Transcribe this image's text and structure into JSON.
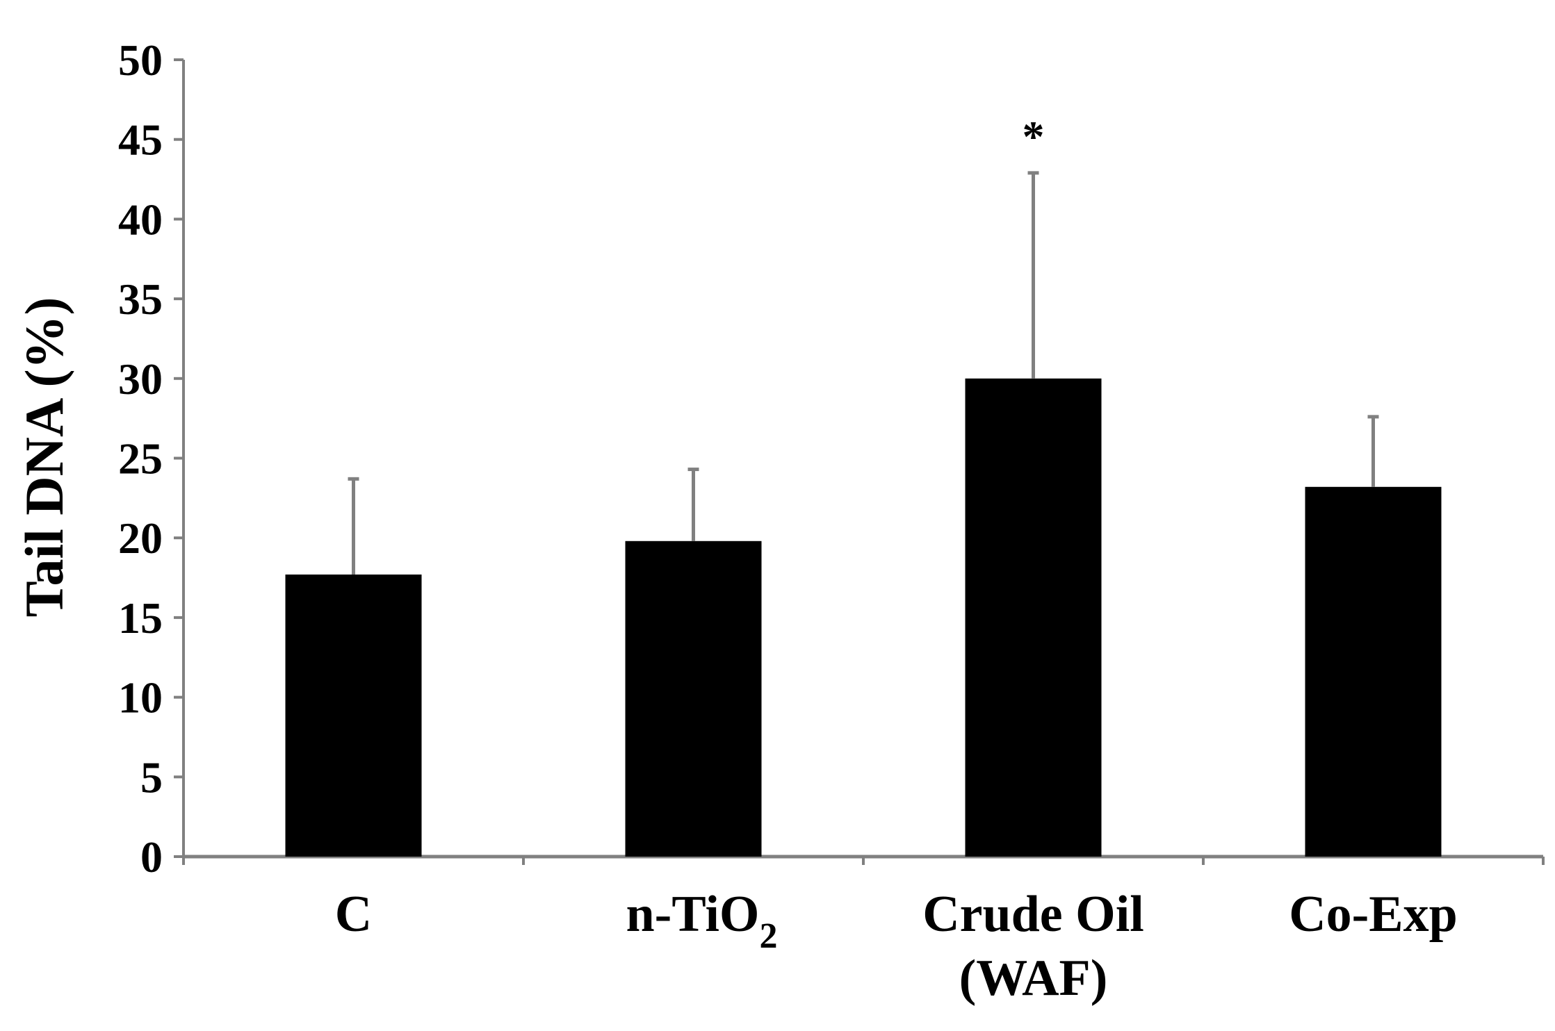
{
  "chart_data": {
    "type": "bar",
    "title": "",
    "xlabel": "",
    "ylabel": "Tail DNA (%)",
    "ylim": [
      0,
      50
    ],
    "yticks": [
      0,
      5,
      10,
      15,
      20,
      25,
      30,
      35,
      40,
      45,
      50
    ],
    "grid": false,
    "legend": "none",
    "categories": [
      {
        "lines": [
          "C"
        ]
      },
      {
        "lines": [
          "n-TiO"
        ],
        "subscript": "2"
      },
      {
        "lines": [
          "Crude Oil",
          "(WAF)"
        ]
      },
      {
        "lines": [
          "Co-Exp"
        ]
      }
    ],
    "values": [
      17.7,
      19.8,
      30.0,
      23.2
    ],
    "error_upper": [
      23.7,
      24.3,
      42.9,
      27.6
    ],
    "annotations": [
      {
        "category_index": 2,
        "text": "*",
        "y": 46
      }
    ],
    "colors": {
      "bar": "#000000",
      "axis": "#808080",
      "error_bar": "#808080"
    }
  }
}
